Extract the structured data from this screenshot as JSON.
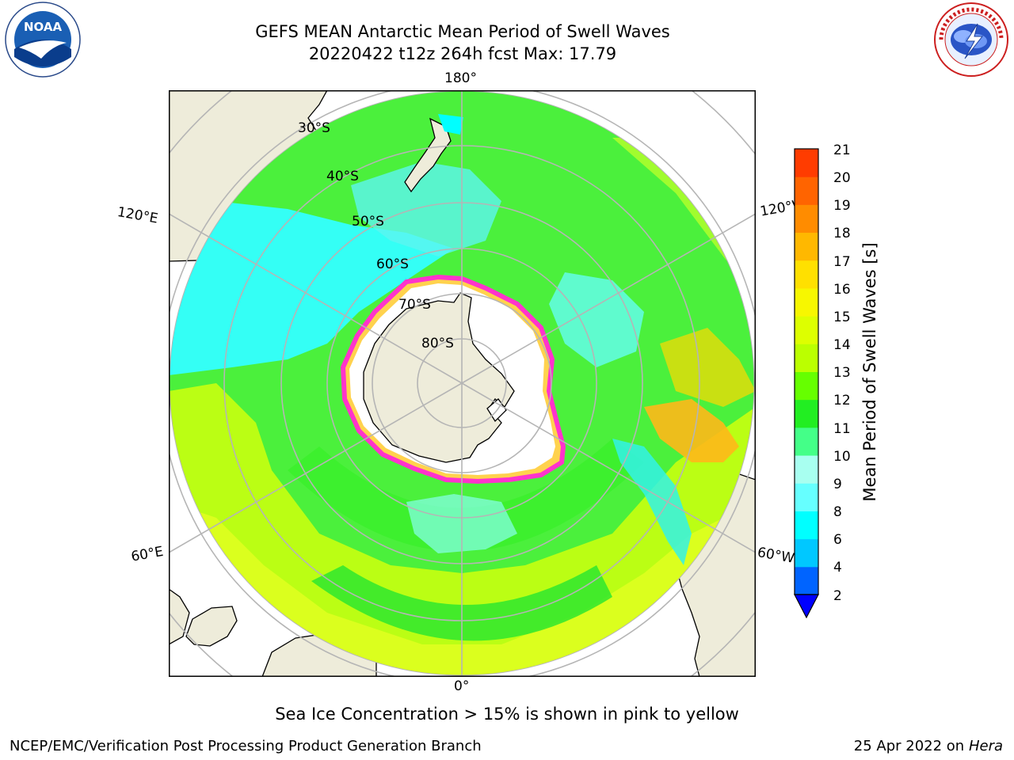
{
  "header": {
    "title_line1": "GEFS MEAN Antarctic Mean Period of Swell Waves",
    "title_line2": "20220422 t12z 264h fcst   Max: 17.79"
  },
  "logos": {
    "left": "NOAA",
    "left_ring_text": "NATIONAL OCEANIC AND ATMOSPHERIC ADMINISTRATION · U.S. DEPARTMENT OF COMMERCE",
    "right_ring_text": "NATIONAL WEATHER SERVICE"
  },
  "map": {
    "projection": "south-polar-stereographic",
    "longitude_labels": {
      "top": "180°",
      "bottom": "0°",
      "upper_left": "120°E",
      "upper_right": "120°W",
      "lower_left": "60°E",
      "lower_right": "60°W"
    },
    "latitude_labels": [
      "30°S",
      "40°S",
      "50°S",
      "60°S",
      "70°S",
      "80°S"
    ],
    "colors": {
      "land": "#EEECDA",
      "ice_edge_pink": "#FF33CC",
      "ice_edge_yellow": "#FFD24D",
      "grid": "#B5B5B5"
    }
  },
  "colorbar": {
    "label": "Mean Period of Swell Waves [s]",
    "ticks": [
      "21",
      "20",
      "19",
      "18",
      "17",
      "16",
      "15",
      "14",
      "13",
      "12",
      "11",
      "10",
      "9",
      "8",
      "6",
      "4",
      "2"
    ],
    "levels_bottom_to_top": [
      2,
      4,
      6,
      8,
      9,
      10,
      11,
      12,
      13,
      14,
      15,
      16,
      17,
      18,
      19,
      20,
      21
    ],
    "colors_bottom_to_top": [
      "#0064FF",
      "#00C8FF",
      "#00FFFF",
      "#66FFFF",
      "#A8FFF0",
      "#44FF88",
      "#22EE22",
      "#66FF00",
      "#BBFF00",
      "#DDFF00",
      "#F7F700",
      "#FFE000",
      "#FFB800",
      "#FF8C00",
      "#FF6400",
      "#FF3C00",
      "#FF1400"
    ],
    "extend_below_color": "#0000FF"
  },
  "footer": {
    "note": "Sea Ice Concentration > 15% is shown in pink to yellow",
    "credit": "NCEP/EMC/Verification Post Processing Product Generation Branch",
    "date_prefix": "25 Apr 2022 on ",
    "machine": "Hera"
  }
}
